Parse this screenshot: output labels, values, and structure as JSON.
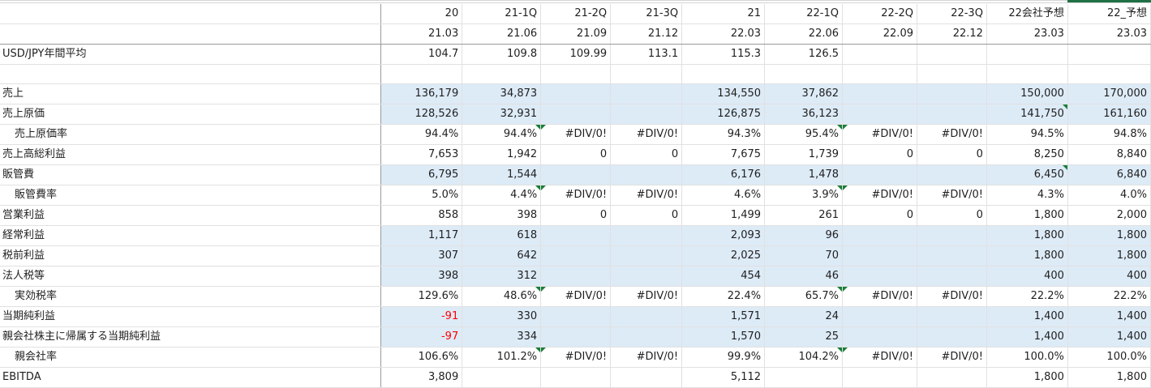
{
  "columns": [
    {
      "period": "20",
      "date": "21.03"
    },
    {
      "period": "21-1Q",
      "date": "21.06"
    },
    {
      "period": "21-2Q",
      "date": "21.09"
    },
    {
      "period": "21-3Q",
      "date": "21.12"
    },
    {
      "period": "21",
      "date": "22.03"
    },
    {
      "period": "22-1Q",
      "date": "22.06"
    },
    {
      "period": "22-2Q",
      "date": "22.09"
    },
    {
      "period": "22-3Q",
      "date": "22.12"
    },
    {
      "period": "22会社予想",
      "date": "23.03"
    },
    {
      "period": "22_予想",
      "date": "23.03"
    }
  ],
  "rows": [
    {
      "label": "USD/JPY年間平均",
      "indent": false,
      "blue": false,
      "values": [
        "104.7",
        "109.8",
        "109.99",
        "113.1",
        "115.3",
        "126.5",
        "",
        "",
        "",
        ""
      ]
    },
    {
      "label": "",
      "indent": false,
      "blue": false,
      "values": [
        "",
        "",
        "",
        "",
        "",
        "",
        "",
        "",
        "",
        ""
      ]
    },
    {
      "label": "売上",
      "indent": false,
      "blue": true,
      "values": [
        "136,179",
        "34,873",
        "",
        "",
        "134,550",
        "37,862",
        "",
        "",
        "150,000",
        "170,000"
      ]
    },
    {
      "label": "売上原価",
      "indent": false,
      "blue": true,
      "values": [
        "128,526",
        "32,931",
        "",
        "",
        "126,875",
        "36,123",
        "",
        "",
        "141,750",
        "161,160"
      ]
    },
    {
      "label": "売上原価率",
      "indent": true,
      "blue": false,
      "values": [
        "94.4%",
        "94.4%",
        "#DIV/0!",
        "#DIV/0!",
        "94.3%",
        "95.4%",
        "#DIV/0!",
        "#DIV/0!",
        "94.5%",
        "94.8%"
      ]
    },
    {
      "label": "売上高総利益",
      "indent": false,
      "blue": false,
      "values": [
        "7,653",
        "1,942",
        "0",
        "0",
        "7,675",
        "1,739",
        "0",
        "0",
        "8,250",
        "8,840"
      ]
    },
    {
      "label": "販管費",
      "indent": false,
      "blue": true,
      "values": [
        "6,795",
        "1,544",
        "",
        "",
        "6,176",
        "1,478",
        "",
        "",
        "6,450",
        "6,840"
      ]
    },
    {
      "label": "販管費率",
      "indent": true,
      "blue": false,
      "values": [
        "5.0%",
        "4.4%",
        "#DIV/0!",
        "#DIV/0!",
        "4.6%",
        "3.9%",
        "#DIV/0!",
        "#DIV/0!",
        "4.3%",
        "4.0%"
      ]
    },
    {
      "label": "営業利益",
      "indent": false,
      "blue": false,
      "values": [
        "858",
        "398",
        "0",
        "0",
        "1,499",
        "261",
        "0",
        "0",
        "1,800",
        "2,000"
      ]
    },
    {
      "label": "経常利益",
      "indent": false,
      "blue": true,
      "values": [
        "1,117",
        "618",
        "",
        "",
        "2,093",
        "96",
        "",
        "",
        "1,800",
        "1,800"
      ]
    },
    {
      "label": "税前利益",
      "indent": false,
      "blue": true,
      "values": [
        "307",
        "642",
        "",
        "",
        "2,025",
        "70",
        "",
        "",
        "1,800",
        "1,800"
      ]
    },
    {
      "label": "法人税等",
      "indent": false,
      "blue": true,
      "values": [
        "398",
        "312",
        "",
        "",
        "454",
        "46",
        "",
        "",
        "400",
        "400"
      ]
    },
    {
      "label": "実効税率",
      "indent": true,
      "blue": false,
      "values": [
        "129.6%",
        "48.6%",
        "#DIV/0!",
        "#DIV/0!",
        "22.4%",
        "65.7%",
        "#DIV/0!",
        "#DIV/0!",
        "22.2%",
        "22.2%"
      ]
    },
    {
      "label": "当期純利益",
      "indent": false,
      "blue": true,
      "values": [
        "-91",
        "330",
        "",
        "",
        "1,571",
        "24",
        "",
        "",
        "1,400",
        "1,400"
      ]
    },
    {
      "label": "親会社株主に帰属する当期純利益",
      "indent": false,
      "blue": true,
      "values": [
        "-97",
        "334",
        "",
        "",
        "1,570",
        "25",
        "",
        "",
        "1,400",
        "1,400"
      ]
    },
    {
      "label": "親会社率",
      "indent": true,
      "blue": false,
      "values": [
        "106.6%",
        "101.2%",
        "#DIV/0!",
        "#DIV/0!",
        "99.9%",
        "104.2%",
        "#DIV/0!",
        "#DIV/0!",
        "100.0%",
        "100.0%"
      ]
    },
    {
      "label": "EBITDA",
      "indent": false,
      "blue": false,
      "values": [
        "3,809",
        "",
        "",
        "",
        "5,112",
        "",
        "",
        "",
        "1,800",
        "1,800"
      ]
    }
  ],
  "colors": {
    "input_fill": "#ddebf7",
    "negative_text": "#ff0000",
    "error_indicator": "#1a7d3a",
    "selected_column": "#1e7145"
  }
}
